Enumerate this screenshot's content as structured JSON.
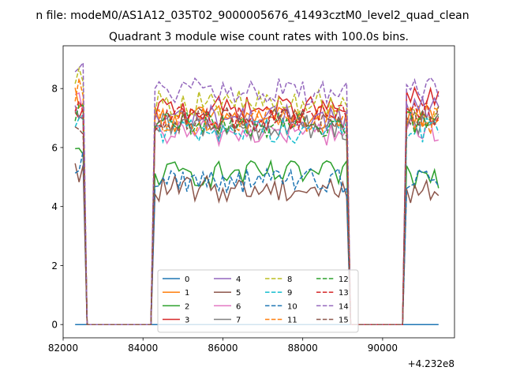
{
  "figure": {
    "suptitle": "n file: modeM0/AS1A12_035T02_9000005676_41493cztM0_level2_quad_clean",
    "title": "Quadrant 3 module wise count rates with 100.0s bins."
  },
  "chart_data": {
    "type": "line",
    "title": "Quadrant 3 module wise count rates with 100.0s bins.",
    "xlabel": "",
    "ylabel": "",
    "x_offset_label": "+4.232e8",
    "xlim": [
      82000,
      91800
    ],
    "ylim": [
      -0.45,
      9.45
    ],
    "xticks": [
      82000,
      84000,
      86000,
      88000,
      90000
    ],
    "yticks": [
      0,
      2,
      4,
      6,
      8
    ],
    "grid": false,
    "legend": {
      "placement": "lower center",
      "columns": 4
    },
    "time_range": {
      "start": 82300,
      "end": 91400,
      "bin": 100
    },
    "gaps": [
      [
        82600,
        84200
      ],
      [
        89200,
        90500
      ]
    ],
    "series": [
      {
        "name": "0",
        "color": "#1f77b4",
        "style": "solid",
        "levels": [
          0,
          0,
          0
        ]
      },
      {
        "name": "1",
        "color": "#ff7f0e",
        "style": "solid",
        "levels": [
          7.8,
          7.0,
          7.1
        ]
      },
      {
        "name": "2",
        "color": "#2ca02c",
        "style": "solid",
        "levels": [
          5.7,
          5.1,
          5.0
        ]
      },
      {
        "name": "3",
        "color": "#d62728",
        "style": "solid",
        "levels": [
          6.9,
          7.3,
          7.6
        ]
      },
      {
        "name": "4",
        "color": "#9467bd",
        "style": "solid",
        "levels": [
          7.1,
          7.0,
          7.3
        ]
      },
      {
        "name": "5",
        "color": "#8c564b",
        "style": "solid",
        "levels": [
          5.1,
          4.6,
          4.5
        ]
      },
      {
        "name": "6",
        "color": "#e377c2",
        "style": "solid",
        "levels": [
          7.4,
          6.5,
          6.6
        ]
      },
      {
        "name": "7",
        "color": "#7f7f7f",
        "style": "solid",
        "levels": [
          6.8,
          6.7,
          6.8
        ]
      },
      {
        "name": "8",
        "color": "#bcbd22",
        "style": "dashed",
        "levels": [
          8.6,
          7.5,
          7.3
        ]
      },
      {
        "name": "9",
        "color": "#17becf",
        "style": "dashed",
        "levels": [
          7.1,
          6.6,
          6.6
        ]
      },
      {
        "name": "10",
        "color": "#1f77b4",
        "style": "dashed",
        "levels": [
          5.5,
          4.9,
          5.0
        ]
      },
      {
        "name": "11",
        "color": "#ff7f0e",
        "style": "dashed",
        "levels": [
          7.9,
          6.9,
          6.9
        ]
      },
      {
        "name": "12",
        "color": "#2ca02c",
        "style": "dashed",
        "levels": [
          7.2,
          6.8,
          6.9
        ]
      },
      {
        "name": "13",
        "color": "#d62728",
        "style": "dashed",
        "levels": [
          7.5,
          7.0,
          7.1
        ]
      },
      {
        "name": "14",
        "color": "#9467bd",
        "style": "dashed",
        "levels": [
          8.8,
          7.9,
          8.0
        ]
      },
      {
        "name": "15",
        "color": "#8c564b",
        "style": "dashed",
        "levels": [
          6.9,
          6.9,
          7.0
        ]
      }
    ]
  }
}
